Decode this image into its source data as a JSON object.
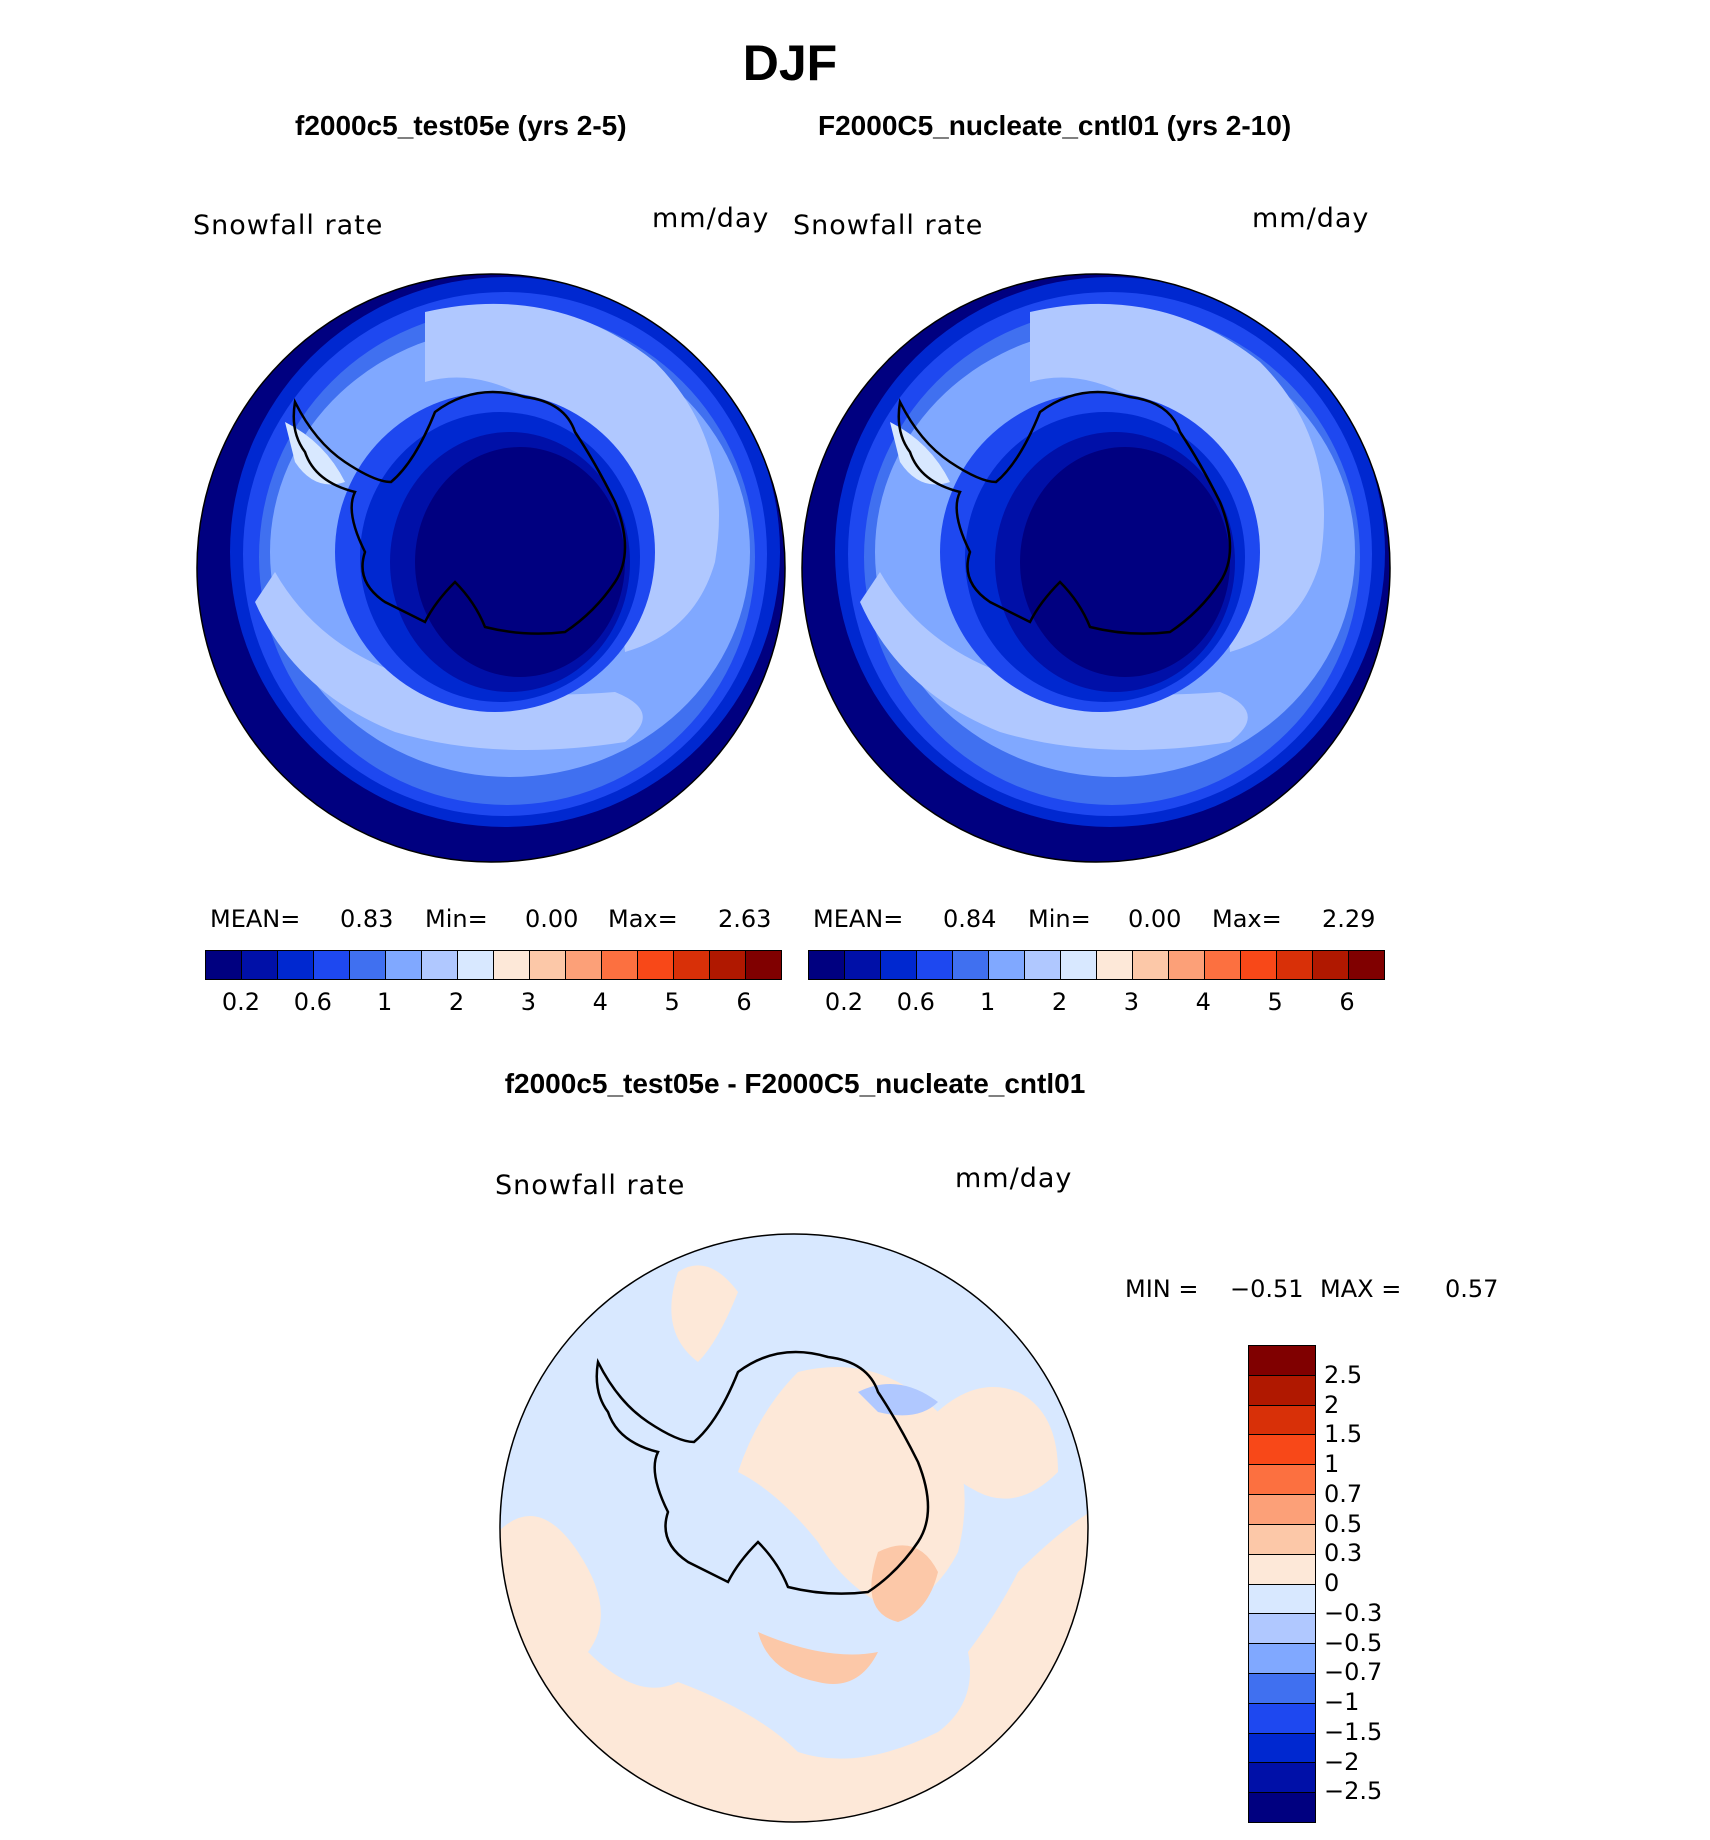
{
  "figure": {
    "season_title": "DJF",
    "left_panel": {
      "title": "f2000c5_test05e (yrs 2-5)",
      "variable": "Snowfall rate",
      "units": "mm/day",
      "stats": {
        "mean_label": "MEAN=",
        "mean": "0.83",
        "min_label": "Min=",
        "min": "0.00",
        "max_label": "Max=",
        "max": "2.63"
      }
    },
    "right_panel": {
      "title": "F2000C5_nucleate_cntl01 (yrs 2-10)",
      "variable": "Snowfall rate",
      "units": "mm/day",
      "stats": {
        "mean_label": "MEAN=",
        "mean": "0.84",
        "min_label": "Min=",
        "min": "0.00",
        "max_label": "Max=",
        "max": "2.29"
      }
    },
    "diff_panel": {
      "title": "f2000c5_test05e - F2000C5_nucleate_cntl01",
      "variable": "Snowfall rate",
      "units": "mm/day",
      "min_label": "MIN =",
      "min": "−0.51",
      "max_label": "MAX =",
      "max": "0.57"
    }
  },
  "abs_colorbar": {
    "colors": [
      "#000080",
      "#0010a8",
      "#0028d0",
      "#1e48f0",
      "#4070f0",
      "#80a8ff",
      "#b0c8ff",
      "#d8e8ff",
      "#fde8d8",
      "#fcc8a8",
      "#fca078",
      "#fc7040",
      "#f84818",
      "#d83008",
      "#b01800",
      "#800000"
    ],
    "tick_labels": [
      "0.2",
      "0.6",
      "1",
      "2",
      "3",
      "4",
      "5",
      "6"
    ]
  },
  "diff_colorbar": {
    "colors": [
      "#800000",
      "#b01800",
      "#d83008",
      "#f84818",
      "#fc7040",
      "#fca078",
      "#fcc8a8",
      "#fde8d8",
      "#d8e8ff",
      "#b0c8ff",
      "#80a8ff",
      "#4070f0",
      "#1e48f0",
      "#0028d0",
      "#0010a8",
      "#000080"
    ],
    "tick_labels": [
      "2.5",
      "2",
      "1.5",
      "1",
      "0.7",
      "0.5",
      "0.3",
      "0",
      "−0.3",
      "−0.5",
      "−0.7",
      "−1",
      "−1.5",
      "−2",
      "−2.5"
    ]
  }
}
